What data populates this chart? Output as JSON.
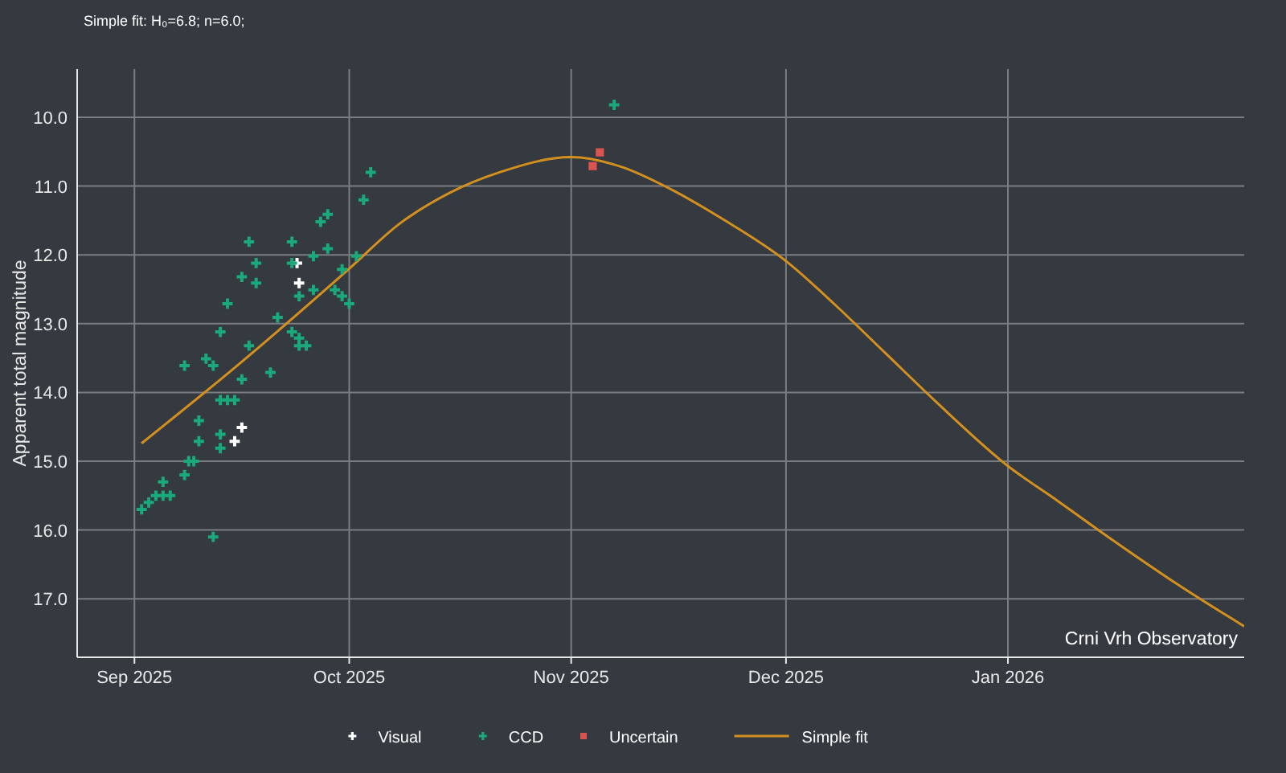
{
  "chart_data": {
    "type": "scatter",
    "title": "Simple fit: H₀=6.8; n=6.0;",
    "ylabel": "Apparent total magnitude",
    "xlim": [
      "2025-08-24",
      "2026-02-03"
    ],
    "xticks": [
      {
        "value": "2025-09-01",
        "label": "Sep 2025"
      },
      {
        "value": "2025-10-01",
        "label": "Oct 2025"
      },
      {
        "value": "2025-11-01",
        "label": "Nov 2025"
      },
      {
        "value": "2025-12-01",
        "label": "Dec 2025"
      },
      {
        "value": "2026-01-01",
        "label": "Jan 2026"
      }
    ],
    "ylim": [
      17.85,
      9.3
    ],
    "yticks": [
      {
        "value": 10,
        "label": "10.0"
      },
      {
        "value": 11,
        "label": "11.0"
      },
      {
        "value": 12,
        "label": "12.0"
      },
      {
        "value": 13,
        "label": "13.0"
      },
      {
        "value": 14,
        "label": "14.0"
      },
      {
        "value": 15,
        "label": "15.0"
      },
      {
        "value": 16,
        "label": "16.0"
      },
      {
        "value": 17,
        "label": "17.0"
      }
    ],
    "grid": true,
    "legend": "bottom",
    "annotations": [
      "Crni Vrh Observatory"
    ],
    "series": [
      {
        "name": "Visual",
        "type": "scatter",
        "marker": "cross",
        "color": "#ffffff",
        "x": [
          "2025-09-23T17:00",
          "2025-09-24",
          "2025-09-16",
          "2025-09-15"
        ],
        "values": [
          12.12,
          12.41,
          14.51,
          14.71
        ]
      },
      {
        "name": "CCD",
        "type": "scatter",
        "marker": "cross",
        "color": "#19a97b",
        "x": [
          "2025-09-28",
          "2025-09-27",
          "2025-09-17",
          "2025-09-23",
          "2025-09-28",
          "2025-09-26",
          "2025-10-02",
          "2025-09-18",
          "2025-09-23",
          "2025-09-16",
          "2025-09-18",
          "2025-09-30",
          "2025-09-24",
          "2025-09-26",
          "2025-09-29",
          "2025-09-30",
          "2025-10-01",
          "2025-09-14",
          "2025-09-21",
          "2025-09-13",
          "2025-09-23",
          "2025-09-24",
          "2025-09-24",
          "2025-09-25",
          "2025-09-17",
          "2025-09-11",
          "2025-09-08",
          "2025-09-12",
          "2025-09-20",
          "2025-09-16",
          "2025-09-13",
          "2025-09-14",
          "2025-09-15",
          "2025-09-10",
          "2025-09-13",
          "2025-09-10",
          "2025-09-13",
          "2025-09-08T14:00",
          "2025-09-09T07:00",
          "2025-09-08",
          "2025-09-05",
          "2025-09-04",
          "2025-09-05",
          "2025-09-06",
          "2025-09-03",
          "2025-09-02",
          "2025-09-12",
          "2025-10-04",
          "2025-10-03",
          "2025-11-07"
        ],
        "values": [
          11.41,
          11.52,
          11.81,
          11.81,
          11.91,
          12.02,
          12.02,
          12.12,
          12.12,
          12.32,
          12.41,
          12.21,
          12.6,
          12.51,
          12.51,
          12.6,
          12.71,
          12.71,
          12.91,
          13.12,
          13.12,
          13.21,
          13.32,
          13.32,
          13.32,
          13.51,
          13.61,
          13.61,
          13.71,
          13.81,
          14.11,
          14.11,
          14.11,
          14.41,
          14.61,
          14.71,
          14.81,
          15.0,
          15.0,
          15.2,
          15.3,
          15.5,
          15.5,
          15.5,
          15.6,
          15.7,
          16.1,
          10.8,
          11.2,
          9.82
        ]
      },
      {
        "name": "Uncertain",
        "type": "scatter",
        "marker": "square",
        "color": "#d9534f",
        "x": [
          "2025-11-05",
          "2025-11-04"
        ],
        "values": [
          10.51,
          10.71
        ]
      },
      {
        "name": "Simple fit",
        "type": "line",
        "marker": "none",
        "line_style": "solid",
        "color": "#d4901e",
        "x": [
          "2025-09-02",
          "2025-09-15",
          "2025-10-01",
          "2025-10-08",
          "2025-10-15",
          "2025-10-22",
          "2025-11-01",
          "2025-11-08",
          "2025-11-15",
          "2025-11-22",
          "2025-12-01",
          "2025-12-08",
          "2025-12-15",
          "2025-12-22",
          "2026-01-01",
          "2026-01-08",
          "2026-01-15",
          "2026-01-25",
          "2026-02-03"
        ],
        "values": [
          14.74,
          13.64,
          12.2,
          11.55,
          11.1,
          10.8,
          10.58,
          10.72,
          11.05,
          11.47,
          12.09,
          12.74,
          13.44,
          14.14,
          15.07,
          15.58,
          16.1,
          16.81,
          17.4
        ]
      }
    ]
  }
}
